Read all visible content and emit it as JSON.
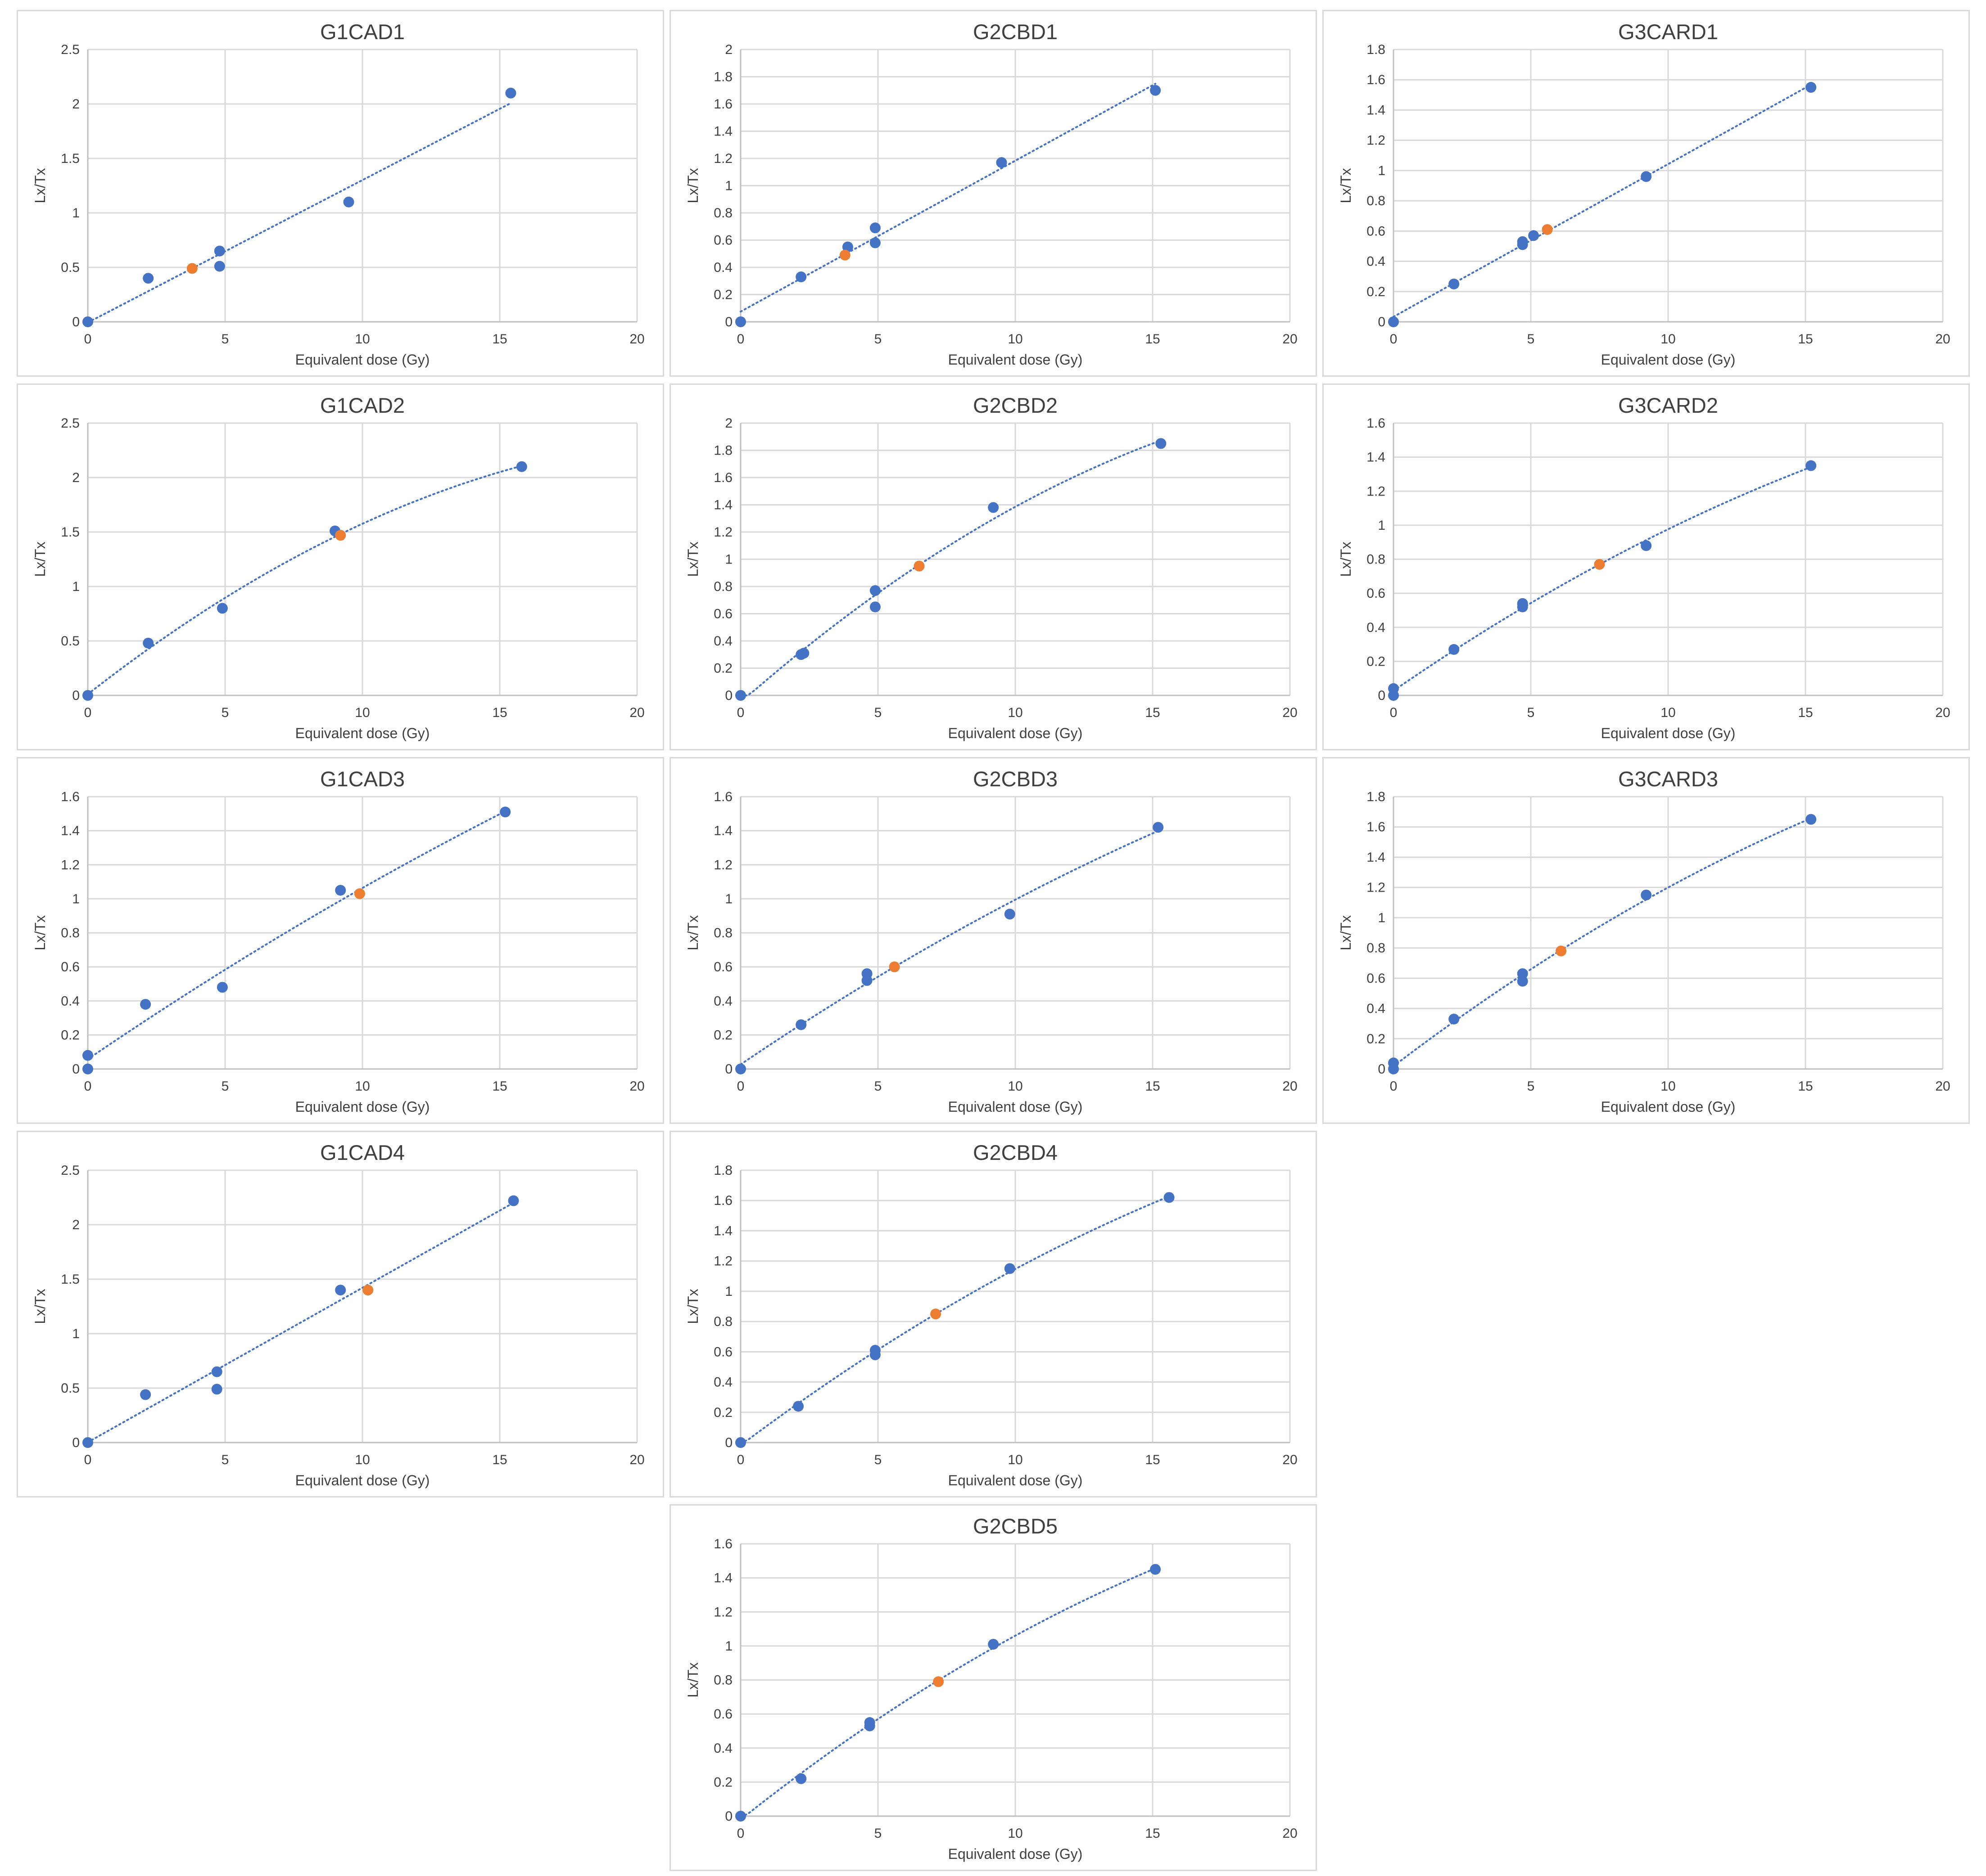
{
  "colors": {
    "data_point": "#4472c4",
    "unknown_point": "#ed7d31",
    "trendline": "#4472c4",
    "grid": "#d9d9d9",
    "text": "#404040"
  },
  "chart_data": [
    {
      "type": "scatter",
      "title": "G1CAD1",
      "xlabel": "Equivalent dose (Gy)",
      "ylabel": "Lx/Tx",
      "xlim": [
        0,
        20
      ],
      "ylim": [
        0,
        2.5
      ],
      "xticks": [
        "0",
        "5",
        "10",
        "15",
        "20"
      ],
      "yticks": [
        "0",
        "0.5",
        "1",
        "1.5",
        "2",
        "2.5"
      ],
      "grid": true,
      "trendline": "linear dotted",
      "series": [
        {
          "marker": "blue",
          "x": [
            0,
            2.2,
            4.8,
            4.8,
            9.5,
            15.4
          ],
          "y": [
            0,
            0.4,
            0.51,
            0.65,
            1.1,
            2.1
          ]
        },
        {
          "marker": "orange",
          "x": [
            3.8
          ],
          "y": [
            0.49
          ]
        }
      ]
    },
    {
      "type": "scatter",
      "title": "G2CBD1",
      "xlabel": "Equivalent dose (Gy)",
      "ylabel": "Lx/Tx",
      "xlim": [
        0,
        20
      ],
      "ylim": [
        0,
        2
      ],
      "xticks": [
        "0",
        "5",
        "10",
        "15",
        "20"
      ],
      "yticks": [
        "0",
        "0.2",
        "0.4",
        "0.6",
        "0.8",
        "1",
        "1.2",
        "1.4",
        "1.6",
        "1.8",
        "2"
      ],
      "grid": true,
      "trendline": "linear dotted",
      "series": [
        {
          "marker": "blue",
          "x": [
            0,
            2.2,
            3.9,
            4.9,
            4.9,
            9.5,
            15.1
          ],
          "y": [
            0,
            0.33,
            0.55,
            0.58,
            0.69,
            1.17,
            1.7
          ]
        },
        {
          "marker": "orange",
          "x": [
            3.8
          ],
          "y": [
            0.49
          ]
        }
      ]
    },
    {
      "type": "scatter",
      "title": "G3CARD1",
      "xlabel": "Equivalent dose (Gy)",
      "ylabel": "Lx/Tx",
      "xlim": [
        0,
        20
      ],
      "ylim": [
        0,
        1.8
      ],
      "xticks": [
        "0",
        "5",
        "10",
        "15",
        "20"
      ],
      "yticks": [
        "0",
        "0.2",
        "0.4",
        "0.6",
        "0.8",
        "1",
        "1.2",
        "1.4",
        "1.6",
        "1.8"
      ],
      "grid": true,
      "trendline": "linear dotted",
      "series": [
        {
          "marker": "blue",
          "x": [
            0,
            2.2,
            4.7,
            4.7,
            5.1,
            9.2,
            15.2
          ],
          "y": [
            0,
            0.25,
            0.51,
            0.53,
            0.57,
            0.96,
            1.55
          ]
        },
        {
          "marker": "orange",
          "x": [
            5.6
          ],
          "y": [
            0.61
          ]
        }
      ]
    },
    {
      "type": "scatter",
      "title": "G1CAD2",
      "xlabel": "Equivalent dose (Gy)",
      "ylabel": "Lx/Tx",
      "xlim": [
        0,
        20
      ],
      "ylim": [
        0,
        2.5
      ],
      "xticks": [
        "0",
        "5",
        "10",
        "15",
        "20"
      ],
      "yticks": [
        "0",
        "0.5",
        "1",
        "1.5",
        "2",
        "2.5"
      ],
      "grid": true,
      "trendline": "polynomial dotted",
      "series": [
        {
          "marker": "blue",
          "x": [
            0,
            2.2,
            4.9,
            9.0,
            15.8
          ],
          "y": [
            0,
            0.48,
            0.8,
            1.51,
            2.1
          ]
        },
        {
          "marker": "orange",
          "x": [
            9.2
          ],
          "y": [
            1.47
          ]
        }
      ]
    },
    {
      "type": "scatter",
      "title": "G2CBD2",
      "xlabel": "Equivalent dose (Gy)",
      "ylabel": "Lx/Tx",
      "xlim": [
        0,
        20
      ],
      "ylim": [
        0,
        2
      ],
      "xticks": [
        "0",
        "5",
        "10",
        "15",
        "20"
      ],
      "yticks": [
        "0",
        "0.2",
        "0.4",
        "0.6",
        "0.8",
        "1",
        "1.2",
        "1.4",
        "1.6",
        "1.8",
        "2"
      ],
      "grid": true,
      "trendline": "polynomial dotted",
      "series": [
        {
          "marker": "blue",
          "x": [
            0,
            2.2,
            2.3,
            4.9,
            4.9,
            9.2,
            15.3
          ],
          "y": [
            0,
            0.3,
            0.31,
            0.65,
            0.77,
            1.38,
            1.85
          ]
        },
        {
          "marker": "orange",
          "x": [
            6.5
          ],
          "y": [
            0.95
          ]
        }
      ]
    },
    {
      "type": "scatter",
      "title": "G3CARD2",
      "xlabel": "Equivalent dose (Gy)",
      "ylabel": "Lx/Tx",
      "xlim": [
        0,
        20
      ],
      "ylim": [
        0,
        1.6
      ],
      "xticks": [
        "0",
        "5",
        "10",
        "15",
        "20"
      ],
      "yticks": [
        "0",
        "0.2",
        "0.4",
        "0.6",
        "0.8",
        "1",
        "1.2",
        "1.4",
        "1.6"
      ],
      "grid": true,
      "trendline": "polynomial dotted",
      "series": [
        {
          "marker": "blue",
          "x": [
            0,
            0,
            2.2,
            4.7,
            4.7,
            9.2,
            15.2
          ],
          "y": [
            0,
            0.04,
            0.27,
            0.52,
            0.54,
            0.88,
            1.35
          ]
        },
        {
          "marker": "orange",
          "x": [
            7.5
          ],
          "y": [
            0.77
          ]
        }
      ]
    },
    {
      "type": "scatter",
      "title": "G1CAD3",
      "xlabel": "Equivalent dose (Gy)",
      "ylabel": "Lx/Tx",
      "xlim": [
        0,
        20
      ],
      "ylim": [
        0,
        1.6
      ],
      "xticks": [
        "0",
        "5",
        "10",
        "15",
        "20"
      ],
      "yticks": [
        "0",
        "0.2",
        "0.4",
        "0.6",
        "0.8",
        "1",
        "1.2",
        "1.4",
        "1.6"
      ],
      "grid": true,
      "trendline": "polynomial dotted",
      "series": [
        {
          "marker": "blue",
          "x": [
            0,
            0,
            2.1,
            4.9,
            9.2,
            15.2
          ],
          "y": [
            0,
            0.08,
            0.38,
            0.48,
            1.05,
            1.51
          ]
        },
        {
          "marker": "orange",
          "x": [
            9.9
          ],
          "y": [
            1.03
          ]
        }
      ]
    },
    {
      "type": "scatter",
      "title": "G2CBD3",
      "xlabel": "Equivalent dose (Gy)",
      "ylabel": "Lx/Tx",
      "xlim": [
        0,
        20
      ],
      "ylim": [
        0,
        1.6
      ],
      "xticks": [
        "0",
        "5",
        "10",
        "15",
        "20"
      ],
      "yticks": [
        "0",
        "0.2",
        "0.4",
        "0.6",
        "0.8",
        "1",
        "1.2",
        "1.4",
        "1.6"
      ],
      "grid": true,
      "trendline": "polynomial dotted",
      "series": [
        {
          "marker": "blue",
          "x": [
            0,
            2.2,
            4.6,
            4.6,
            9.8,
            15.2
          ],
          "y": [
            0,
            0.26,
            0.52,
            0.56,
            0.91,
            1.42
          ]
        },
        {
          "marker": "orange",
          "x": [
            5.6
          ],
          "y": [
            0.6
          ]
        }
      ]
    },
    {
      "type": "scatter",
      "title": "G3CARD3",
      "xlabel": "Equivalent dose (Gy)",
      "ylabel": "Lx/Tx",
      "xlim": [
        0,
        20
      ],
      "ylim": [
        0,
        1.8
      ],
      "xticks": [
        "0",
        "5",
        "10",
        "15",
        "20"
      ],
      "yticks": [
        "0",
        "0.2",
        "0.4",
        "0.6",
        "0.8",
        "1",
        "1.2",
        "1.4",
        "1.6",
        "1.8"
      ],
      "grid": true,
      "trendline": "polynomial dotted",
      "series": [
        {
          "marker": "blue",
          "x": [
            0,
            0,
            2.2,
            4.7,
            4.7,
            9.2,
            15.2
          ],
          "y": [
            0,
            0.04,
            0.33,
            0.58,
            0.63,
            1.15,
            1.65
          ]
        },
        {
          "marker": "orange",
          "x": [
            6.1
          ],
          "y": [
            0.78
          ]
        }
      ]
    },
    {
      "type": "scatter",
      "title": "G1CAD4",
      "xlabel": "Equivalent dose (Gy)",
      "ylabel": "Lx/Tx",
      "xlim": [
        0,
        20
      ],
      "ylim": [
        0,
        2.5
      ],
      "xticks": [
        "0",
        "5",
        "10",
        "15",
        "20"
      ],
      "yticks": [
        "0",
        "0.5",
        "1",
        "1.5",
        "2",
        "2.5"
      ],
      "grid": true,
      "trendline": "linear dotted",
      "series": [
        {
          "marker": "blue",
          "x": [
            0,
            2.1,
            4.7,
            4.7,
            9.2,
            15.5
          ],
          "y": [
            0,
            0.44,
            0.49,
            0.65,
            1.4,
            2.22
          ]
        },
        {
          "marker": "orange",
          "x": [
            10.2
          ],
          "y": [
            1.4
          ]
        }
      ]
    },
    {
      "type": "scatter",
      "title": "G2CBD4",
      "xlabel": "Equivalent dose (Gy)",
      "ylabel": "Lx/Tx",
      "xlim": [
        0,
        20
      ],
      "ylim": [
        0,
        1.8
      ],
      "xticks": [
        "0",
        "5",
        "10",
        "15",
        "20"
      ],
      "yticks": [
        "0",
        "0.2",
        "0.4",
        "0.6",
        "0.8",
        "1",
        "1.2",
        "1.4",
        "1.6",
        "1.8"
      ],
      "grid": true,
      "trendline": "polynomial dotted",
      "series": [
        {
          "marker": "blue",
          "x": [
            0,
            2.1,
            4.9,
            4.9,
            9.8,
            15.6
          ],
          "y": [
            0,
            0.24,
            0.58,
            0.61,
            1.15,
            1.62
          ]
        },
        {
          "marker": "orange",
          "x": [
            7.1
          ],
          "y": [
            0.85
          ]
        }
      ]
    },
    {
      "type": "scatter",
      "title": "G2CBD5",
      "xlabel": "Equivalent dose (Gy)",
      "ylabel": "Lx/Tx",
      "xlim": [
        0,
        20
      ],
      "ylim": [
        0,
        1.6
      ],
      "xticks": [
        "0",
        "5",
        "10",
        "15",
        "20"
      ],
      "yticks": [
        "0",
        "0.2",
        "0.4",
        "0.6",
        "0.8",
        "1",
        "1.2",
        "1.4",
        "1.6"
      ],
      "grid": true,
      "trendline": "polynomial dotted",
      "series": [
        {
          "marker": "blue",
          "x": [
            0,
            2.2,
            4.7,
            4.7,
            9.2,
            15.1
          ],
          "y": [
            0,
            0.22,
            0.53,
            0.55,
            1.01,
            1.45
          ]
        },
        {
          "marker": "orange",
          "x": [
            7.2
          ],
          "y": [
            0.79
          ]
        }
      ]
    }
  ]
}
